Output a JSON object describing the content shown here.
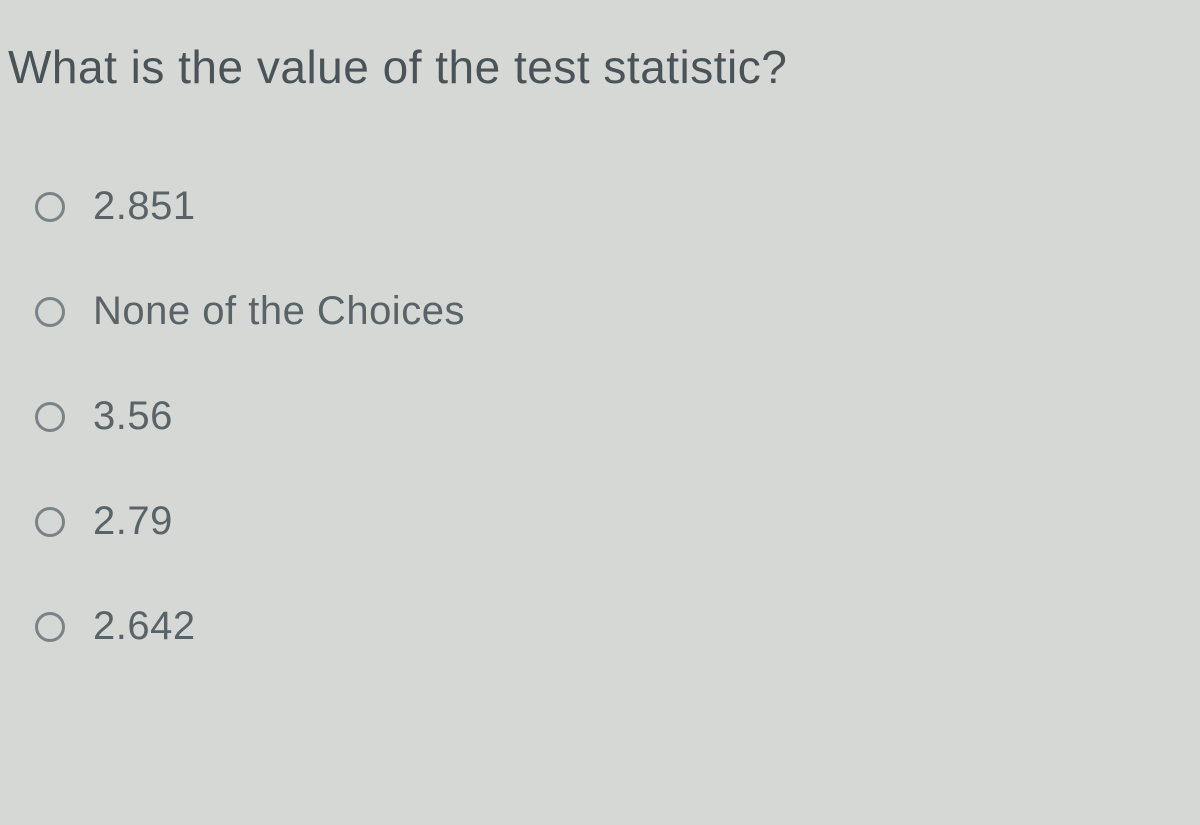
{
  "question": {
    "text": "What is the value of the test statistic?",
    "text_color": "#4a5458",
    "font_size": 46
  },
  "options": [
    {
      "label": "2.851",
      "selected": false
    },
    {
      "label": "None of the Choices",
      "selected": false
    },
    {
      "label": "3.56",
      "selected": false
    },
    {
      "label": "2.79",
      "selected": false
    },
    {
      "label": "2.642",
      "selected": false
    }
  ],
  "styling": {
    "background_color": "#d5d8d5",
    "option_text_color": "#5a6468",
    "option_font_size": 40,
    "radio_border_color": "#7a8488",
    "radio_size": 30
  }
}
